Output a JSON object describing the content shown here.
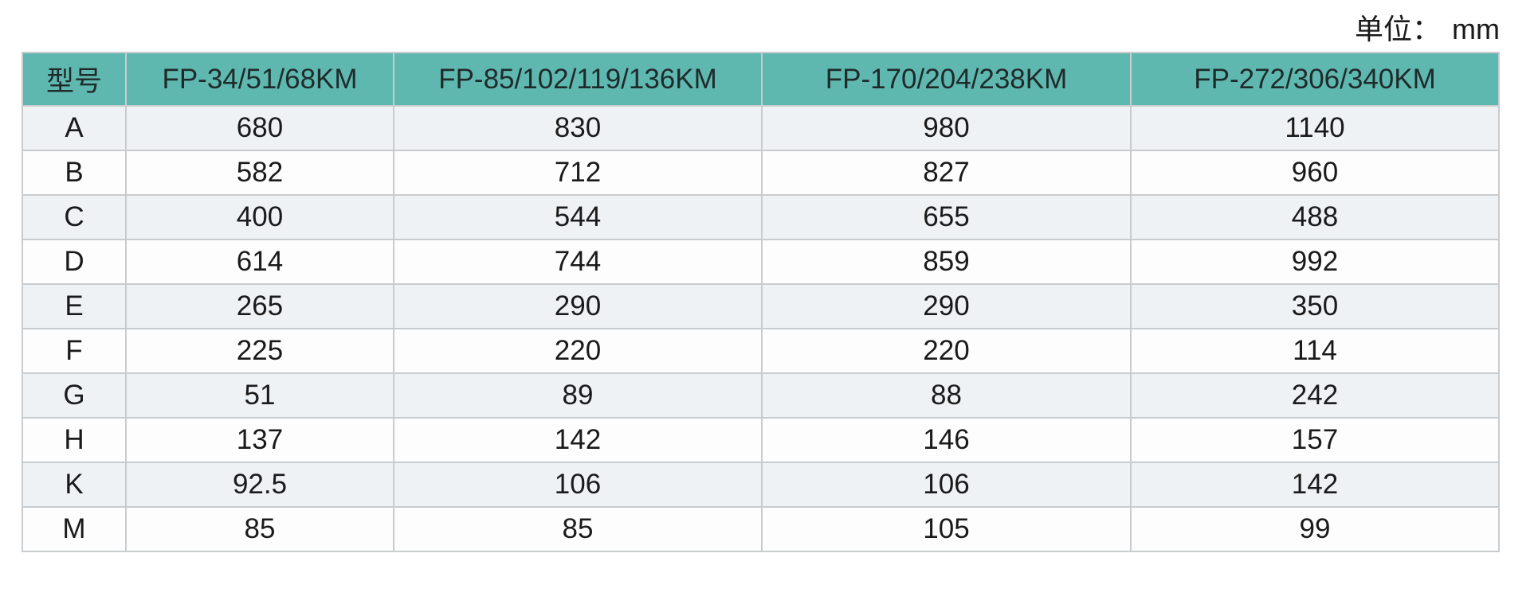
{
  "unit": {
    "label": "单位：",
    "value": "mm"
  },
  "table": {
    "headers": [
      "型号",
      "FP-34/51/68KM",
      "FP-85/102/119/136KM",
      "FP-170/204/238KM",
      "FP-272/306/340KM"
    ],
    "rows": [
      [
        "A",
        "680",
        "830",
        "980",
        "1140"
      ],
      [
        "B",
        "582",
        "712",
        "827",
        "960"
      ],
      [
        "C",
        "400",
        "544",
        "655",
        "488"
      ],
      [
        "D",
        "614",
        "744",
        "859",
        "992"
      ],
      [
        "E",
        "265",
        "290",
        "290",
        "350"
      ],
      [
        "F",
        "225",
        "220",
        "220",
        "114"
      ],
      [
        "G",
        "51",
        "89",
        "88",
        "242"
      ],
      [
        "H",
        "137",
        "142",
        "146",
        "157"
      ],
      [
        "K",
        "92.5",
        "106",
        "106",
        "142"
      ],
      [
        "M",
        "85",
        "85",
        "105",
        "99"
      ]
    ]
  },
  "colors": {
    "header_bg": "#5fb8b0",
    "row_alt_bg": "#eef2f5",
    "border": "#c9cccf"
  }
}
